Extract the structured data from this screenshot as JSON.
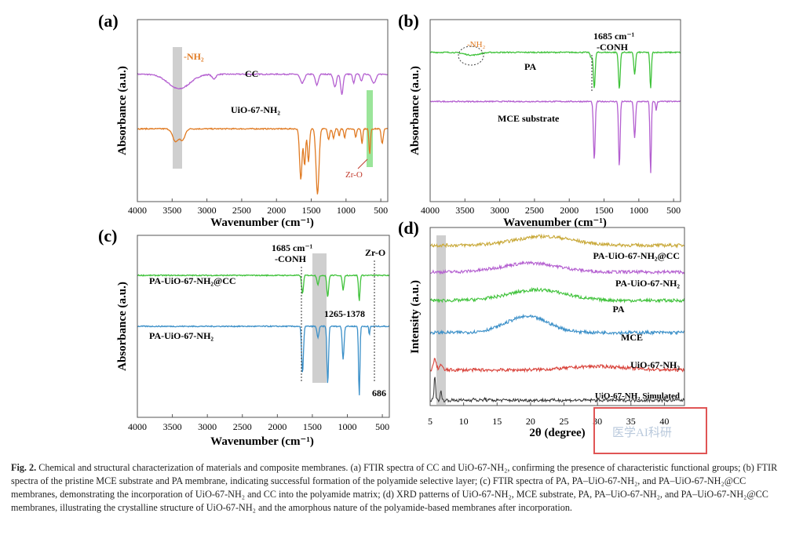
{
  "caption": {
    "label": "Fig. 2.",
    "text": "Chemical and structural characterization of materials and composite membranes. (a) FTIR spectra of CC and UiO-67-NH₂, confirming the presence of characteristic functional groups; (b) FTIR spectra of the pristine MCE substrate and PA membrane, indicating successful formation of the polyamide selective layer; (c) FTIR spectra of PA, PA–UiO-67-NH₂, and PA–UiO-67-NH₂@CC membranes, demonstrating the incorporation of UiO-67-NH₂ and CC into the polyamide matrix; (d) XRD patterns of UiO-67-NH₂, MCE substrate, PA, PA–UiO-67-NH₂, and PA–UiO-67-NH₂@CC membranes, illustrating the crystalline structure of UiO-67-NH₂ and the amorphous nature of the polyamide-based membranes after incorporation."
  },
  "watermark": "医学AI科研",
  "colors": {
    "purple": "#b45fd0",
    "orange": "#e07a22",
    "green": "#3fc23a",
    "blue": "#3a8fc8",
    "red": "#d9443c",
    "black": "#333333",
    "yellow": "#c9a93a",
    "band_gray": "#cfcfcf",
    "band_green": "#9be59a",
    "highlight_box": "#e05555"
  },
  "chart_data": [
    {
      "panel": "(a)",
      "type": "line",
      "xlabel": "Wavenumber (cm⁻¹)",
      "ylabel": "Absorbance (a.u.)",
      "xlim": [
        4000,
        400
      ],
      "x_reversed": true,
      "xticks": [
        4000,
        3500,
        3000,
        2500,
        2000,
        1500,
        1000,
        500
      ],
      "series": [
        {
          "name": "CC",
          "color": "purple",
          "baseline": 0.7,
          "peaks": [
            [
              3400,
              0.08,
              220
            ],
            [
              2900,
              0.025,
              40
            ],
            [
              1630,
              0.05,
              40
            ],
            [
              1420,
              0.06,
              30
            ],
            [
              1160,
              0.07,
              30
            ],
            [
              1060,
              0.11,
              25
            ],
            [
              890,
              0.05,
              20
            ],
            [
              780,
              0.04,
              20
            ],
            [
              600,
              0.05,
              40
            ]
          ]
        },
        {
          "name": "UiO-67-NH₂",
          "color": "orange",
          "baseline": 0.4,
          "peaks": [
            [
              3450,
              0.07,
              60
            ],
            [
              3350,
              0.06,
              50
            ],
            [
              1650,
              0.28,
              25
            ],
            [
              1595,
              0.2,
              20
            ],
            [
              1540,
              0.18,
              20
            ],
            [
              1410,
              0.36,
              30
            ],
            [
              1250,
              0.06,
              20
            ],
            [
              1180,
              0.05,
              20
            ],
            [
              1100,
              0.04,
              15
            ],
            [
              1020,
              0.05,
              15
            ],
            [
              860,
              0.05,
              15
            ],
            [
              770,
              0.08,
              15
            ],
            [
              660,
              0.14,
              15
            ],
            [
              480,
              0.08,
              20
            ]
          ]
        }
      ],
      "bands": [
        {
          "center": 3450,
          "width": 110,
          "color": "band_gray"
        },
        {
          "center": 660,
          "width": 60,
          "color": "band_green"
        }
      ],
      "annotations": [
        "-NH₂",
        "Zr-O"
      ]
    },
    {
      "panel": "(b)",
      "type": "line",
      "xlabel": "Wavenumber (cm⁻¹)",
      "ylabel": "Absorbance (a.u.)",
      "xlim": [
        4000,
        400
      ],
      "x_reversed": true,
      "xticks": [
        4000,
        3500,
        3000,
        2500,
        2000,
        1500,
        1000,
        500
      ],
      "series": [
        {
          "name": "PA",
          "color": "green",
          "baseline": 0.82,
          "peaks": [
            [
              3400,
              0.015,
              150
            ],
            [
              1685,
              0.03,
              20
            ],
            [
              1640,
              0.2,
              18
            ],
            [
              1280,
              0.2,
              18
            ],
            [
              1060,
              0.12,
              18
            ],
            [
              830,
              0.2,
              15
            ]
          ]
        },
        {
          "name": "MCE substrate",
          "color": "purple",
          "baseline": 0.55,
          "peaks": [
            [
              1640,
              0.32,
              18
            ],
            [
              1280,
              0.36,
              16
            ],
            [
              1060,
              0.2,
              18
            ],
            [
              830,
              0.4,
              14
            ],
            [
              750,
              0.05,
              12
            ]
          ]
        }
      ],
      "annotations": [
        "-NH₂",
        "1685 cm⁻¹",
        "-CONH"
      ]
    },
    {
      "panel": "(c)",
      "type": "line",
      "xlabel": "Wavenumber (cm⁻¹)",
      "ylabel": "Absorbance (a.u.)",
      "xlim": [
        4000,
        400
      ],
      "x_reversed": true,
      "xticks": [
        4000,
        3500,
        3000,
        2500,
        2000,
        1500,
        1000,
        500
      ],
      "series": [
        {
          "name": "PA-UiO-67-NH₂@CC",
          "color": "green",
          "baseline": 0.78,
          "peaks": [
            [
              1640,
              0.1,
              18
            ],
            [
              1420,
              0.05,
              20
            ],
            [
              1280,
              0.12,
              18
            ],
            [
              1060,
              0.08,
              18
            ],
            [
              830,
              0.14,
              15
            ]
          ]
        },
        {
          "name": "PA-UiO-67-NH₂",
          "color": "blue",
          "baseline": 0.5,
          "peaks": [
            [
              1640,
              0.26,
              18
            ],
            [
              1420,
              0.06,
              20
            ],
            [
              1280,
              0.32,
              16
            ],
            [
              1060,
              0.18,
              18
            ],
            [
              830,
              0.38,
              14
            ],
            [
              686,
              0.05,
              10
            ]
          ]
        }
      ],
      "bands": [
        {
          "center": 1320,
          "width": 113,
          "color": "band_gray"
        }
      ],
      "annotations": [
        "1685 cm⁻¹",
        "-CONH",
        "1265-1378",
        "Zr-O",
        "686"
      ]
    },
    {
      "panel": "(d)",
      "type": "line",
      "xlabel": "2θ (degree)",
      "ylabel": "Intensity (a.u.)",
      "xlim": [
        5,
        43
      ],
      "xticks": [
        5,
        10,
        15,
        20,
        25,
        30,
        35,
        40
      ],
      "series": [
        {
          "name": "PA-UiO-67-NH₂@CC",
          "color": "yellow",
          "baseline": 0.9,
          "humps": [
            [
              22,
              0.05,
              6
            ]
          ]
        },
        {
          "name": "PA-UiO-67-NH₂",
          "color": "purple",
          "baseline": 0.75,
          "humps": [
            [
              20,
              0.05,
              6
            ]
          ]
        },
        {
          "name": "PA",
          "color": "green",
          "baseline": 0.59,
          "humps": [
            [
              21,
              0.06,
              6
            ]
          ]
        },
        {
          "name": "MCE",
          "color": "blue",
          "baseline": 0.41,
          "humps": [
            [
              19.5,
              0.09,
              4.5
            ]
          ]
        },
        {
          "name": "UiO-67-NH₂",
          "color": "red",
          "baseline": 0.2,
          "humps": [
            [
              5.7,
              0.06,
              0.3
            ],
            [
              6.6,
              0.03,
              0.3
            ],
            [
              30,
              0.02,
              6
            ]
          ]
        },
        {
          "name": "UiO-67-NH₂ Simulated",
          "color": "black",
          "baseline": 0.03,
          "humps": [
            [
              5.7,
              0.14,
              0.15
            ],
            [
              6.6,
              0.05,
              0.15
            ],
            [
              11.4,
              0.015,
              0.15
            ],
            [
              13.2,
              0.01,
              0.15
            ]
          ]
        }
      ],
      "bands": [
        {
          "center": 6.4,
          "width": 1.3,
          "color": "band_gray"
        }
      ]
    }
  ]
}
